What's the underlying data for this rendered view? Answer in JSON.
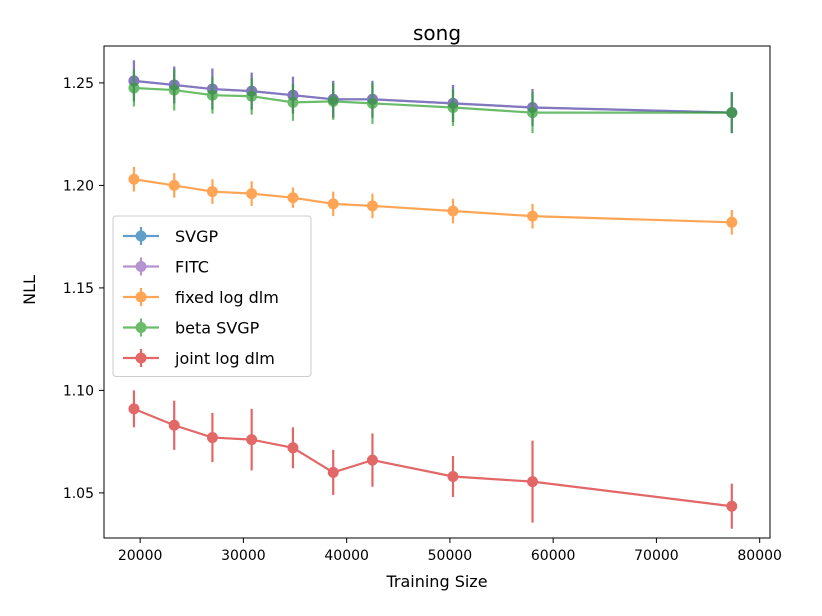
{
  "chart_data": {
    "type": "line",
    "title": "song",
    "xlabel": "Training Size",
    "ylabel": "NLL",
    "xlim": [
      16500,
      81000
    ],
    "ylim": [
      1.028,
      1.268
    ],
    "xticks": [
      20000,
      30000,
      40000,
      50000,
      60000,
      70000,
      80000
    ],
    "xtick_labels": [
      "20000",
      "30000",
      "40000",
      "50000",
      "60000",
      "70000",
      "80000"
    ],
    "yticks": [
      1.05,
      1.1,
      1.15,
      1.2,
      1.25
    ],
    "ytick_labels": [
      "1.05",
      "1.10",
      "1.15",
      "1.20",
      "1.25"
    ],
    "legend_position": "center-left",
    "x": [
      19400,
      23300,
      27000,
      30800,
      34800,
      38700,
      42500,
      50300,
      58000,
      77300
    ],
    "series": [
      {
        "name": "SVGP",
        "color": "#1f77b4",
        "values": [
          1.251,
          1.249,
          1.247,
          1.246,
          1.244,
          1.242,
          1.242,
          1.24,
          1.238,
          1.2355
        ],
        "errors": [
          0.01,
          0.009,
          0.01,
          0.009,
          0.009,
          0.009,
          0.009,
          0.009,
          0.009,
          0.01
        ]
      },
      {
        "name": "FITC",
        "color": "#9467bd",
        "values": [
          1.251,
          1.249,
          1.247,
          1.246,
          1.244,
          1.242,
          1.242,
          1.24,
          1.238,
          1.2355
        ],
        "errors": [
          0.01,
          0.009,
          0.01,
          0.009,
          0.009,
          0.009,
          0.009,
          0.009,
          0.009,
          0.01
        ]
      },
      {
        "name": "fixed log dlm",
        "color": "#ff7f0e",
        "values": [
          1.203,
          1.2,
          1.197,
          1.196,
          1.194,
          1.191,
          1.19,
          1.1875,
          1.185,
          1.182
        ],
        "errors": [
          0.006,
          0.006,
          0.006,
          0.006,
          0.005,
          0.006,
          0.006,
          0.006,
          0.006,
          0.006
        ]
      },
      {
        "name": "beta SVGP",
        "color": "#2ca02c",
        "values": [
          1.2475,
          1.2465,
          1.244,
          1.2435,
          1.2405,
          1.241,
          1.24,
          1.238,
          1.2355,
          1.2355
        ],
        "errors": [
          0.009,
          0.01,
          0.009,
          0.009,
          0.009,
          0.009,
          0.01,
          0.009,
          0.01,
          0.01
        ]
      },
      {
        "name": "joint log dlm",
        "color": "#d62728",
        "values": [
          1.091,
          1.083,
          1.077,
          1.076,
          1.072,
          1.06,
          1.066,
          1.058,
          1.0555,
          1.0435
        ],
        "errors": [
          0.009,
          0.012,
          0.012,
          0.015,
          0.01,
          0.011,
          0.013,
          0.01,
          0.02,
          0.011
        ]
      }
    ]
  }
}
